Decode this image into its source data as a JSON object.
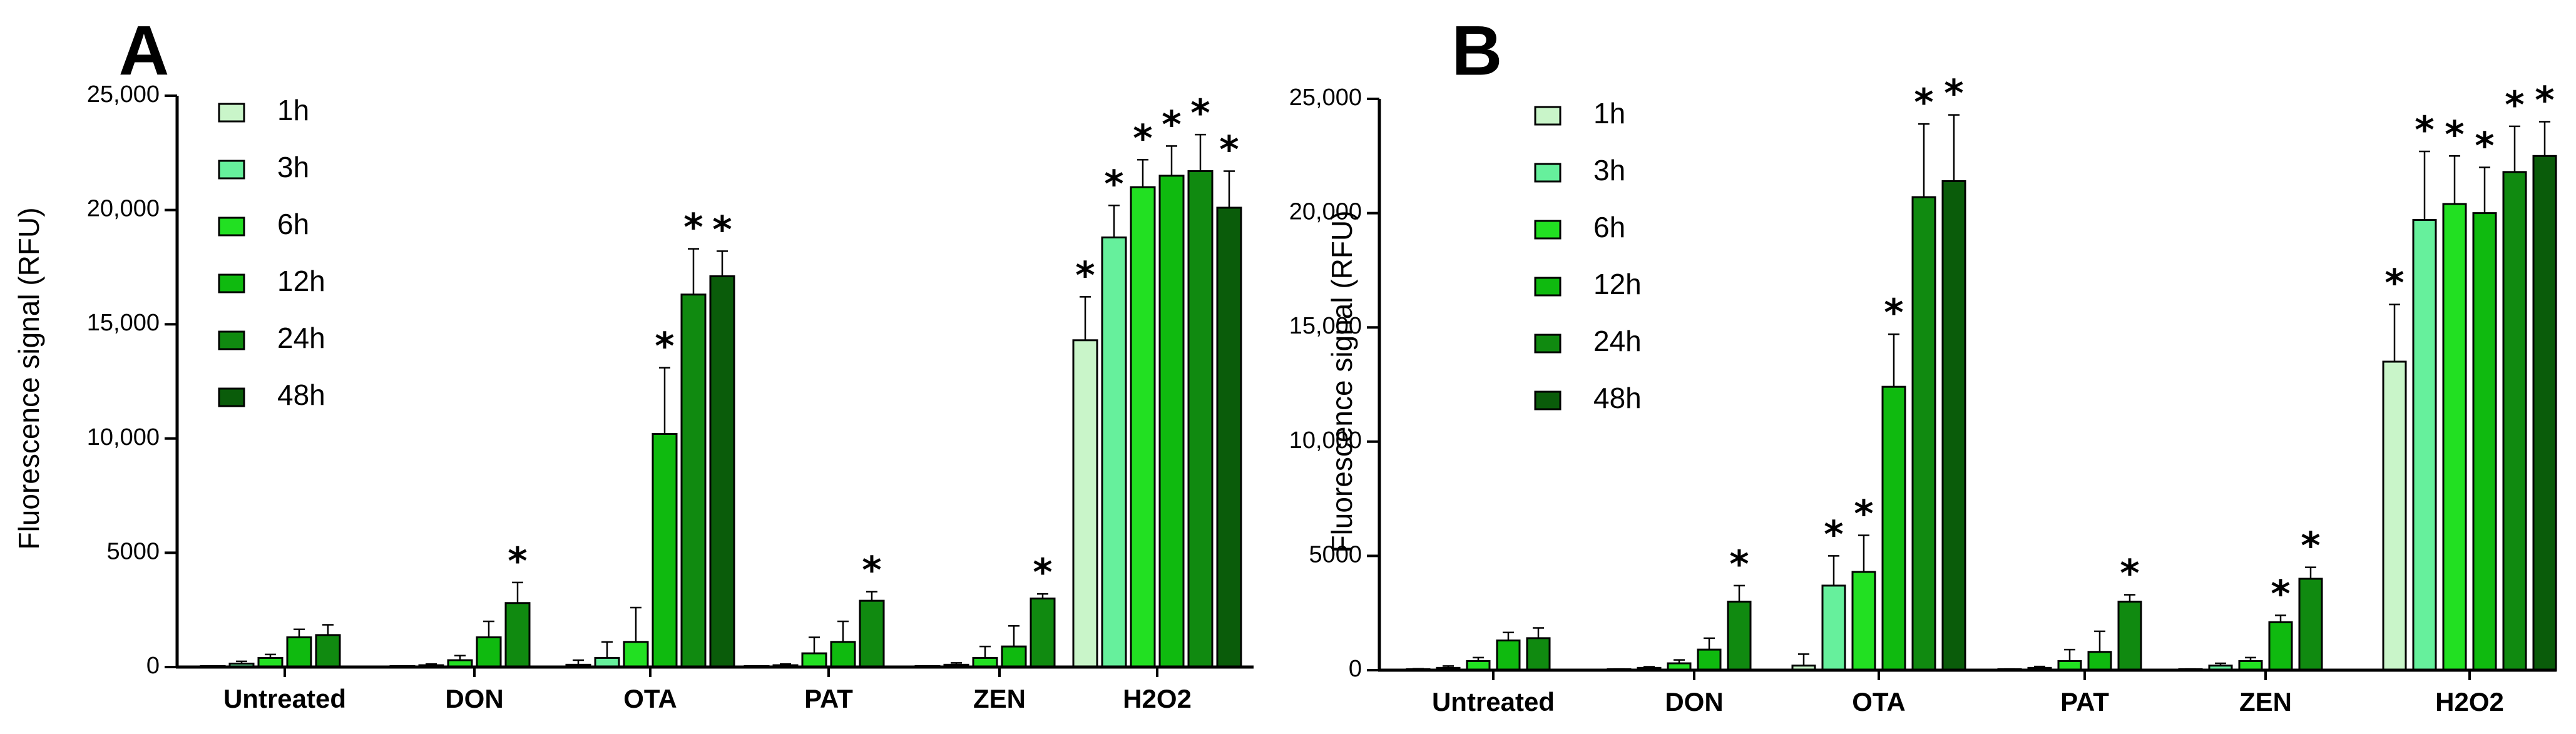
{
  "colors": [
    "#c9f5c9",
    "#66f09c",
    "#22e022",
    "#0fba0f",
    "#108a10",
    "#0a5c0a"
  ],
  "chart_data": [
    {
      "type": "bar",
      "panel_label": "A",
      "ylabel": "Fluorescence signal (RFU)",
      "ylim": [
        0,
        25000
      ],
      "yticks": [
        0,
        5000,
        10000,
        15000,
        20000,
        25000
      ],
      "ytick_labels": [
        "0",
        "5000",
        "10,000",
        "15,000",
        "20,000",
        "25,000"
      ],
      "categories": [
        "Untreated",
        "DON",
        "OTA",
        "PAT",
        "ZEN",
        "H2O2"
      ],
      "legend": {
        "position": "top-left",
        "entries": [
          "1h",
          "3h",
          "6h",
          "12h",
          "24h",
          "48h"
        ]
      },
      "series": [
        {
          "name": "1h",
          "values": [
            0,
            0,
            100,
            0,
            0,
            14300
          ],
          "errors": [
            50,
            50,
            200,
            50,
            50,
            1900
          ],
          "significant": [
            false,
            false,
            false,
            false,
            false,
            true
          ]
        },
        {
          "name": "3h",
          "values": [
            150,
            80,
            400,
            80,
            100,
            18800
          ],
          "errors": [
            100,
            50,
            700,
            50,
            80,
            1400
          ],
          "significant": [
            false,
            false,
            false,
            false,
            false,
            true
          ]
        },
        {
          "name": "6h",
          "values": [
            400,
            300,
            1100,
            600,
            400,
            21000
          ],
          "errors": [
            150,
            200,
            1500,
            700,
            500,
            1200
          ],
          "significant": [
            false,
            false,
            false,
            false,
            false,
            true
          ]
        },
        {
          "name": "12h",
          "values": [
            1300,
            1300,
            10200,
            1100,
            900,
            21500
          ],
          "errors": [
            350,
            700,
            2900,
            900,
            900,
            1300
          ],
          "significant": [
            false,
            false,
            true,
            false,
            false,
            true
          ]
        },
        {
          "name": "24h",
          "values": [
            1400,
            2800,
            16300,
            2900,
            3000,
            21700
          ],
          "errors": [
            450,
            900,
            2000,
            400,
            200,
            1600
          ],
          "significant": [
            false,
            true,
            true,
            true,
            true,
            true
          ]
        },
        {
          "name": "48h",
          "values": [
            null,
            null,
            17100,
            null,
            null,
            20100
          ],
          "errors": [
            0,
            0,
            1100,
            0,
            0,
            1600
          ],
          "significant": [
            false,
            false,
            true,
            false,
            false,
            true
          ]
        }
      ],
      "significance_marker": "*"
    },
    {
      "type": "bar",
      "panel_label": "B",
      "ylabel": "Fluorescence signal (RFU)",
      "ylim": [
        0,
        25000
      ],
      "yticks": [
        0,
        5000,
        10000,
        15000,
        20000,
        25000
      ],
      "ytick_labels": [
        "0",
        "5000",
        "10,000",
        "15,000",
        "20,000",
        "25,000"
      ],
      "categories": [
        "Untreated",
        "DON",
        "OTA",
        "PAT",
        "ZEN",
        "H2O2"
      ],
      "legend": {
        "position": "top-left",
        "entries": [
          "1h",
          "3h",
          "6h",
          "12h",
          "24h",
          "48h"
        ]
      },
      "series": [
        {
          "name": "1h",
          "values": [
            0,
            0,
            200,
            0,
            0,
            13500
          ],
          "errors": [
            60,
            50,
            500,
            50,
            50,
            2500
          ],
          "significant": [
            false,
            false,
            false,
            false,
            false,
            true
          ]
        },
        {
          "name": "3h",
          "values": [
            100,
            100,
            3700,
            100,
            200,
            19700
          ],
          "errors": [
            80,
            50,
            1300,
            60,
            100,
            3000
          ],
          "significant": [
            false,
            false,
            true,
            false,
            false,
            true
          ]
        },
        {
          "name": "6h",
          "values": [
            400,
            300,
            4300,
            400,
            400,
            20400
          ],
          "errors": [
            150,
            150,
            1600,
            500,
            150,
            2100
          ],
          "significant": [
            false,
            false,
            true,
            false,
            false,
            true
          ]
        },
        {
          "name": "12h",
          "values": [
            1300,
            900,
            12400,
            800,
            2100,
            20000
          ],
          "errors": [
            350,
            500,
            2300,
            900,
            300,
            2000
          ],
          "significant": [
            false,
            false,
            true,
            false,
            true,
            true
          ]
        },
        {
          "name": "24h",
          "values": [
            1400,
            3000,
            20700,
            3000,
            4000,
            21800
          ],
          "errors": [
            450,
            700,
            3200,
            300,
            500,
            2000
          ],
          "significant": [
            false,
            true,
            true,
            true,
            true,
            true
          ]
        },
        {
          "name": "48h",
          "values": [
            null,
            null,
            21400,
            null,
            null,
            22500
          ],
          "errors": [
            0,
            0,
            2900,
            0,
            0,
            1500
          ],
          "significant": [
            false,
            false,
            true,
            false,
            false,
            true
          ]
        }
      ],
      "significance_marker": "*"
    }
  ]
}
